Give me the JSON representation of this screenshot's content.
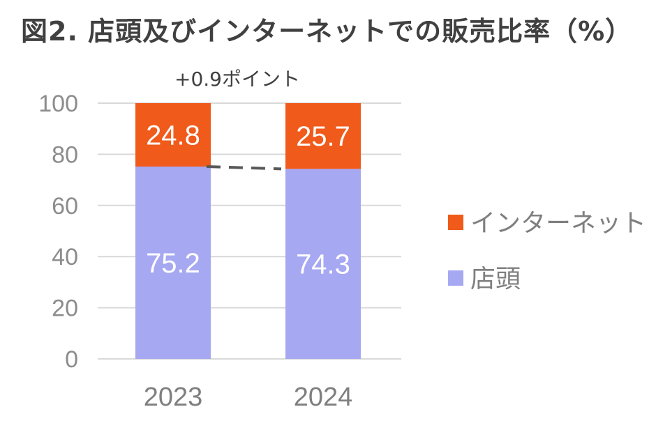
{
  "title": "図2. 店頭及びインターネットでの販売比率（%）",
  "annotation": "+0.9ポイント",
  "colors": {
    "internet": "#F05A1A",
    "store": "#A7A8F2",
    "grid": "#d9d9d9",
    "connector": "#595959"
  },
  "chart_data": {
    "type": "bar",
    "stacked": true,
    "title": "図2. 店頭及びインターネットでの販売比率（%）",
    "categories": [
      "2023",
      "2024"
    ],
    "series": [
      {
        "name": "店頭",
        "values": [
          75.2,
          74.3
        ]
      },
      {
        "name": "インターネット",
        "values": [
          24.8,
          25.7
        ]
      }
    ],
    "ylim": [
      0,
      100
    ],
    "yticks": [
      0,
      20,
      40,
      60,
      80,
      100
    ],
    "grid": true,
    "legend": "right",
    "annotations": [
      "+0.9ポイント"
    ]
  }
}
